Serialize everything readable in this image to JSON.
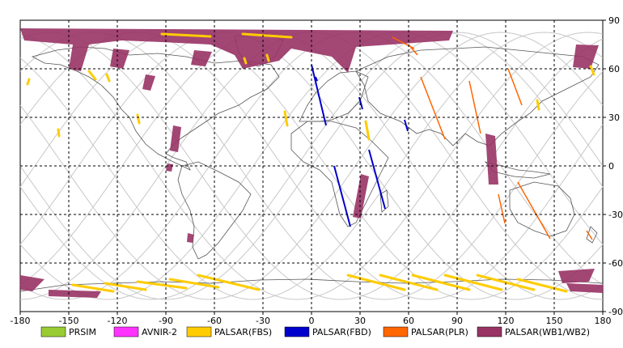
{
  "x_ticks": [
    "-180",
    "-150",
    "-120",
    "-90",
    "-60",
    "-30",
    "0",
    "30",
    "60",
    "90",
    "120",
    "150",
    "180"
  ],
  "y_ticks": [
    "90",
    "60",
    "30",
    "0",
    "-30",
    "-60",
    "-90"
  ],
  "legend": [
    {
      "label": "PRSIM",
      "color": "#99cc33"
    },
    {
      "label": "AVNIR-2",
      "color": "#ff33ff"
    },
    {
      "label": "PALSAR(FBS)",
      "color": "#ffcc00"
    },
    {
      "label": "PALSAR(FBD)",
      "color": "#0000cc"
    },
    {
      "label": "PALSAR(PLR)",
      "color": "#ff6600"
    },
    {
      "label": "PALSAR(WB1/WB2)",
      "color": "#993366"
    }
  ],
  "colors": {
    "grid": "#000000",
    "orbit": "#c8c8c8",
    "coast": "#555555"
  }
}
